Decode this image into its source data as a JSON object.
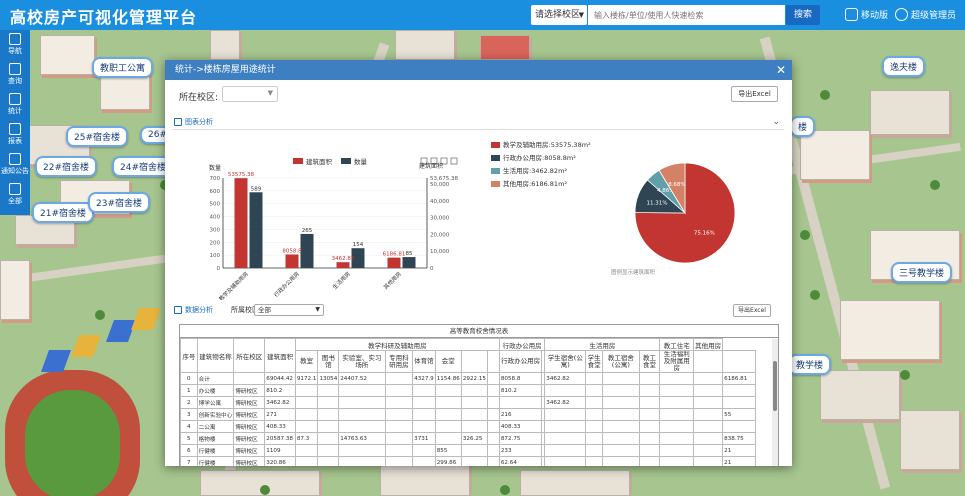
{
  "header": {
    "app_title": "高校房产可视化管理平台",
    "campus_select": "请选择校区",
    "search_placeholder": "输入楼栋/单位/使用人快速检索",
    "search_button": "搜索",
    "mobile_label": "移动版",
    "user_label": "超级管理员"
  },
  "nav": {
    "items": [
      {
        "label": "导航",
        "icon": "navigate-icon"
      },
      {
        "label": "查询",
        "icon": "query-icon"
      },
      {
        "label": "统计",
        "icon": "statistics-icon"
      },
      {
        "label": "报表",
        "icon": "report-icon"
      },
      {
        "label": "通知公告",
        "icon": "notice-icon"
      },
      {
        "label": "全部",
        "icon": "all-icon"
      }
    ]
  },
  "map_labels": {
    "staff_apartment": "教职工公寓",
    "dorm25": "25#宿舍楼",
    "dorm26": "26#",
    "dorm22": "22#宿舍楼",
    "dorm24": "24#宿舍楼",
    "dorm21": "21#宿舍楼",
    "dorm23": "23#宿舍楼",
    "yifu": "逸夫楼",
    "teach3": "三号教学楼",
    "teach_partial": "教学楼",
    "partial_right": "楼"
  },
  "modal": {
    "title": "统计->楼栋房屋用途统计",
    "campus_label": "所在校区:",
    "export_label": "导出Excel",
    "chart_section": "图表分析",
    "data_section": "数据分析",
    "building_label": "所属校区",
    "building_filter": "全部",
    "export_small": "导出Excel"
  },
  "chart_data": [
    {
      "type": "bar",
      "legend": [
        "建筑面积",
        "数量"
      ],
      "categories": [
        "教学及辅助用房",
        "行政办公用房",
        "生活用房",
        "其他用房"
      ],
      "series": [
        {
          "name": "建筑面积",
          "values": [
            53575.38,
            8058.8,
            3462.82,
            6186.81
          ],
          "color": "#c23531",
          "labels": [
            "53575.38",
            "8058.8",
            "3462.82",
            "6186.81"
          ]
        },
        {
          "name": "数量",
          "values": [
            589,
            265,
            154,
            85
          ],
          "color": "#2f4554",
          "labels": [
            "589",
            "265",
            "154",
            "85"
          ]
        }
      ],
      "left_axis_name": "数量",
      "right_axis_name": "建筑面积",
      "left_ticks": [
        "700",
        "600",
        "500",
        "400",
        "300",
        "200",
        "100",
        "0"
      ],
      "right_ticks": [
        "53,675.38",
        "50,000",
        "40,000",
        "30,000",
        "20,000",
        "10,000",
        "0"
      ],
      "left_max": 700,
      "right_max": 53675.38
    },
    {
      "type": "pie",
      "legend": [
        "教学及辅助用房:53575.38m²",
        "行政办公用房:8058.8m²",
        "生活用房:3462.82m²",
        "其他用房:6186.81m²"
      ],
      "values": [
        75.16,
        11.31,
        4.86,
        8.68
      ],
      "slice_labels": [
        "75.16%",
        "11.31%",
        "4.86%",
        "8.68%"
      ],
      "colors": [
        "#c23531",
        "#2f4554",
        "#61a0a8",
        "#d48265"
      ],
      "footnote": "图例显示建筑面积"
    }
  ],
  "table": {
    "title": "高等教育校舍情况表",
    "col_no": "序号",
    "col_name": "建筑物名称",
    "col_campus": "所在校区",
    "col_area": "建筑面积",
    "groups": [
      {
        "label": "教学科研及辅助用房",
        "span": 8
      },
      {
        "label": "行政办公用房",
        "span": 2
      },
      {
        "label": "生活用房",
        "span": 4
      },
      {
        "label": "教工住宅",
        "span": 1
      },
      {
        "label": "其他用房",
        "span": 1
      }
    ],
    "subheaders": [
      "教室",
      "图书馆",
      "实验室、实习场所",
      "专用科研用房",
      "体育馆",
      "会堂",
      "",
      "",
      "行政办公用房",
      "",
      "学生宿舍(公寓)",
      "学生食堂",
      "教工宿舍(公寓)",
      "教工食堂",
      "生活福利及附属用房",
      "",
      ""
    ],
    "rows": [
      [
        "0",
        "合计",
        "",
        "69044.42",
        "9172.1",
        "13054",
        "24407.52",
        "",
        "4327.9",
        "1154.86",
        "2922.15",
        "",
        "8058.8",
        "",
        "3462.82",
        "",
        "",
        "",
        "",
        "",
        "6186.81"
      ],
      [
        "1",
        "办公楼",
        "博研校区",
        "810.2",
        "",
        "",
        "",
        "",
        "",
        "",
        "",
        "",
        "810.2",
        "",
        "",
        "",
        "",
        "",
        "",
        "",
        ""
      ],
      [
        "2",
        "博学公寓",
        "博研校区",
        "3462.82",
        "",
        "",
        "",
        "",
        "",
        "",
        "",
        "",
        "",
        "",
        "3462.82",
        "",
        "",
        "",
        "",
        "",
        ""
      ],
      [
        "3",
        "创新实验中心",
        "博研校区",
        "271",
        "",
        "",
        "",
        "",
        "",
        "",
        "",
        "",
        "216",
        "",
        "",
        "",
        "",
        "",
        "",
        "",
        "55"
      ],
      [
        "4",
        "二公寓",
        "博研校区",
        "408.33",
        "",
        "",
        "",
        "",
        "",
        "",
        "",
        "",
        "408.33",
        "",
        "",
        "",
        "",
        "",
        "",
        "",
        ""
      ],
      [
        "5",
        "格物楼",
        "博研校区",
        "20587.38",
        "87.3",
        "",
        "14763.63",
        "",
        "3731",
        "",
        "326.25",
        "",
        "872.75",
        "",
        "",
        "",
        "",
        "",
        "",
        "",
        "838.75"
      ],
      [
        "6",
        "行健楼",
        "博研校区",
        "1109",
        "",
        "",
        "",
        "",
        "",
        "855",
        "",
        "",
        "233",
        "",
        "",
        "",
        "",
        "",
        "",
        "",
        "21"
      ],
      [
        "7",
        "行健楼",
        "博研校区",
        "320.86",
        "",
        "",
        "",
        "",
        "",
        "299.86",
        "",
        "",
        "62.64",
        "",
        "",
        "",
        "",
        "",
        "",
        "",
        "21"
      ]
    ]
  }
}
